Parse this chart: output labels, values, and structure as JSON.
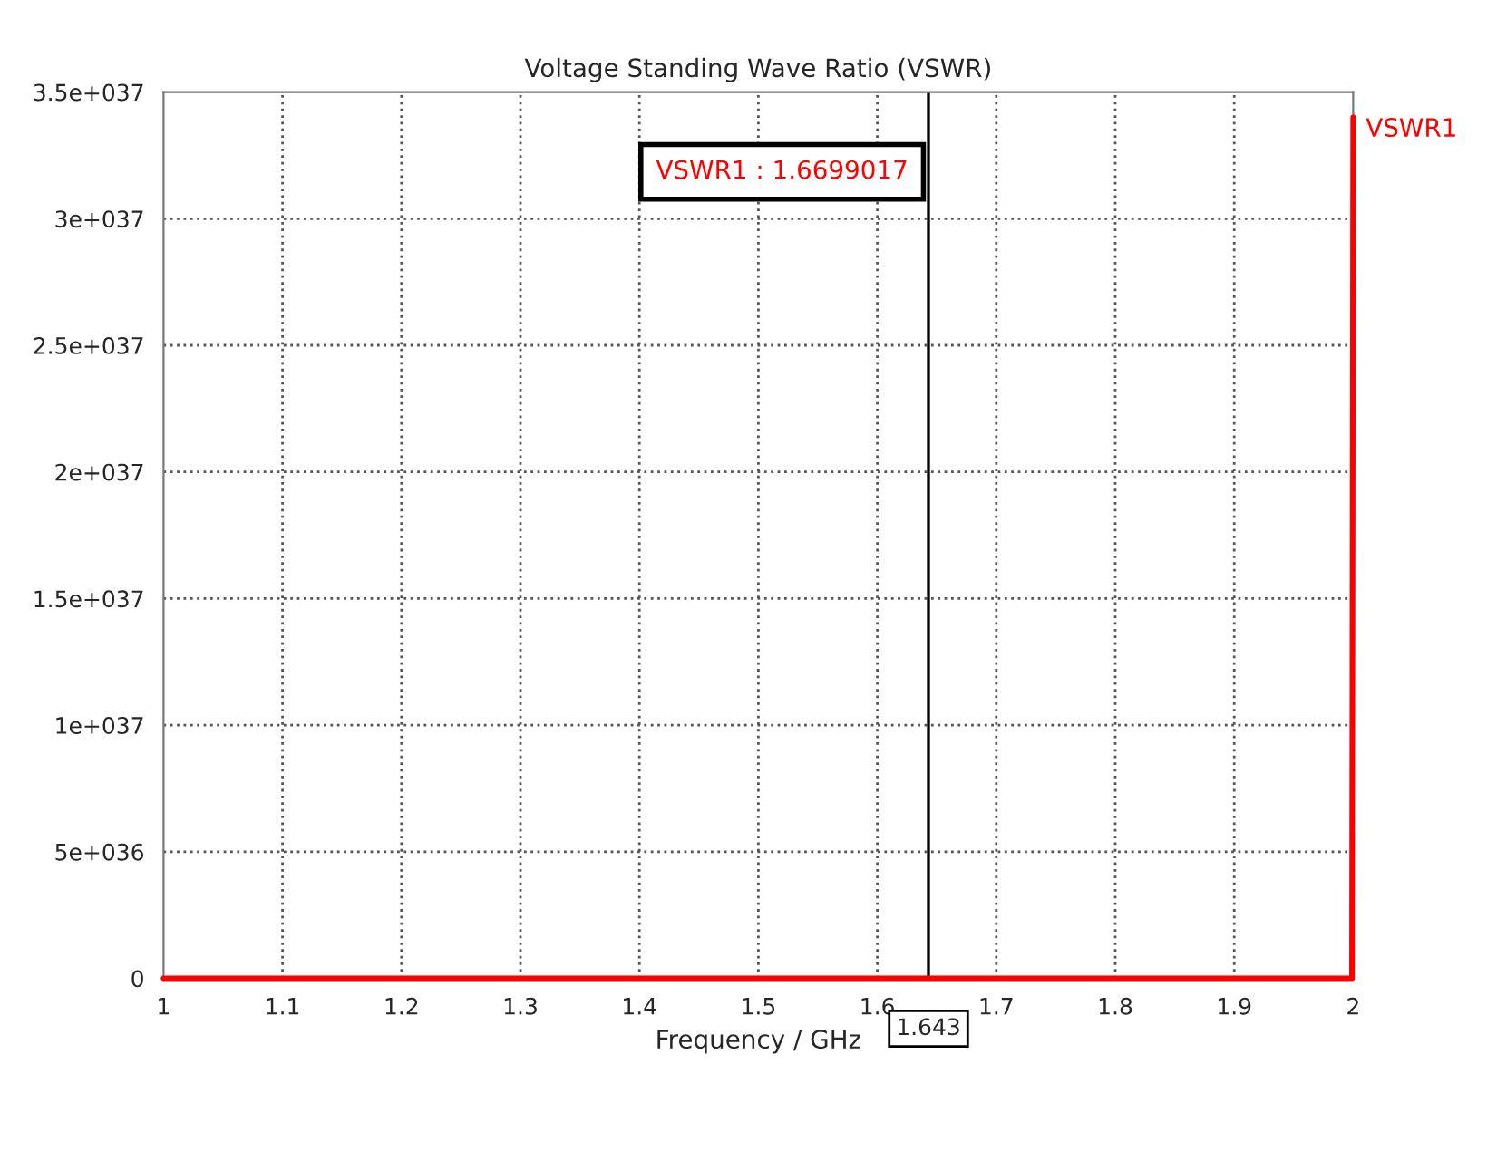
{
  "chart_data": {
    "type": "line",
    "title": "Voltage Standing Wave Ratio (VSWR)",
    "xlabel": "Frequency / GHz",
    "series": [
      {
        "name": "VSWR1",
        "color": "#ff0000",
        "x": [
          1,
          1.999,
          2
        ],
        "values": [
          0,
          0,
          3.4e+37
        ]
      }
    ],
    "xlim": [
      1,
      2
    ],
    "xticks": [
      1,
      1.1,
      1.2,
      1.3,
      1.4,
      1.5,
      1.6,
      1.7,
      1.8,
      1.9,
      2
    ],
    "ylim": [
      0,
      3.5e+37
    ],
    "yticks": [
      0,
      {
        "value": 5e+36,
        "label": "5e+036"
      },
      {
        "value": 1e+37,
        "label": "1e+037"
      },
      {
        "value": 1.5e+37,
        "label": "1.5e+037"
      },
      {
        "value": 2e+37,
        "label": "2e+037"
      },
      {
        "value": 2.5e+37,
        "label": "2.5e+037"
      },
      {
        "value": 3e+37,
        "label": "3e+037"
      },
      {
        "value": 3.5e+37,
        "label": "3.5e+037"
      }
    ],
    "ref_lines": [
      {
        "axis": "x",
        "value": 1.643,
        "label": "1.643",
        "color": "#000000"
      }
    ],
    "annotations": [
      "VSWR1 : 1.6699017"
    ],
    "grid": true,
    "line_style": "solid",
    "marker": "none"
  }
}
